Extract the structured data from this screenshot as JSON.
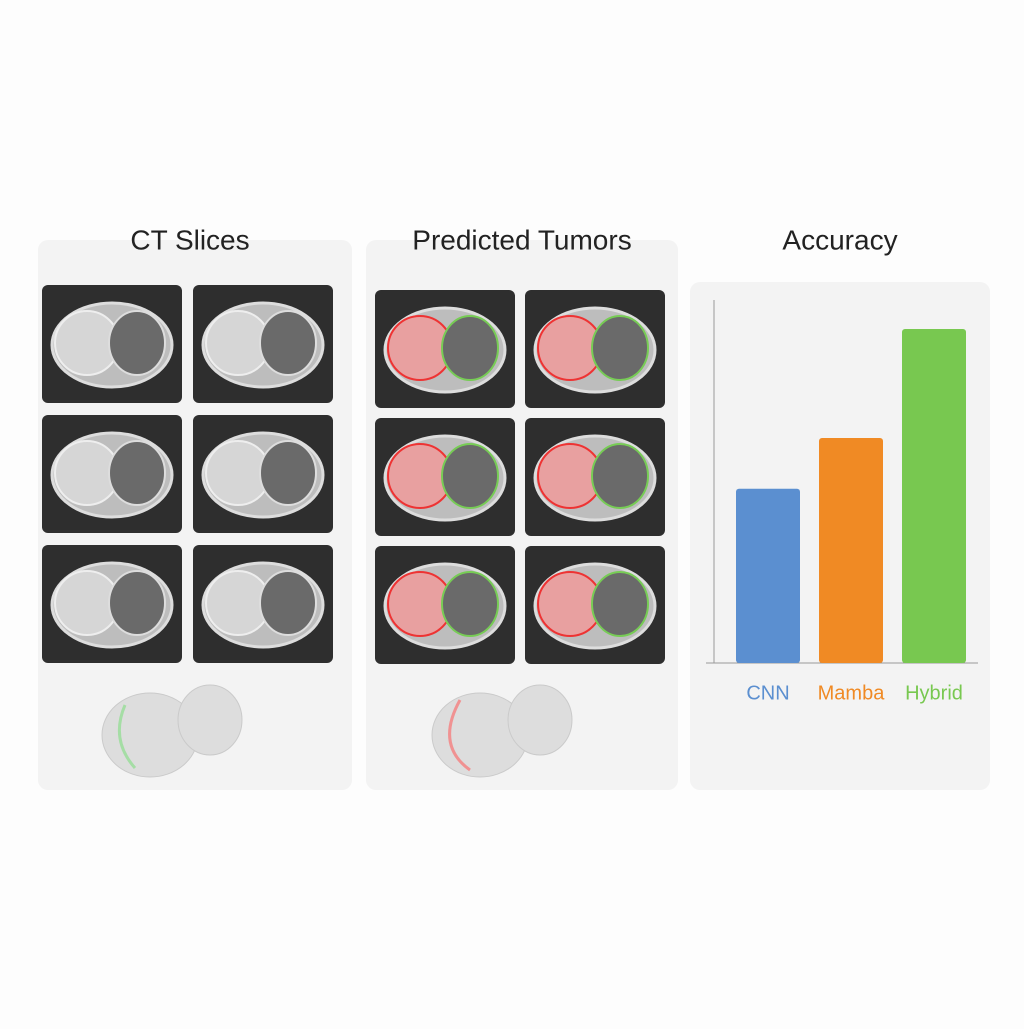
{
  "panels": [
    {
      "title": "CT Slices"
    },
    {
      "title": "Predicted Tumors"
    }
  ],
  "chart_data": {
    "type": "bar",
    "title": "Accuracy",
    "categories": [
      "CNN",
      "Mamba",
      "Hybrid"
    ],
    "values": [
      0.48,
      0.62,
      0.92
    ],
    "colors": [
      "#5b8fd0",
      "#f08a24",
      "#78c850"
    ],
    "ylim": [
      0,
      1
    ]
  }
}
